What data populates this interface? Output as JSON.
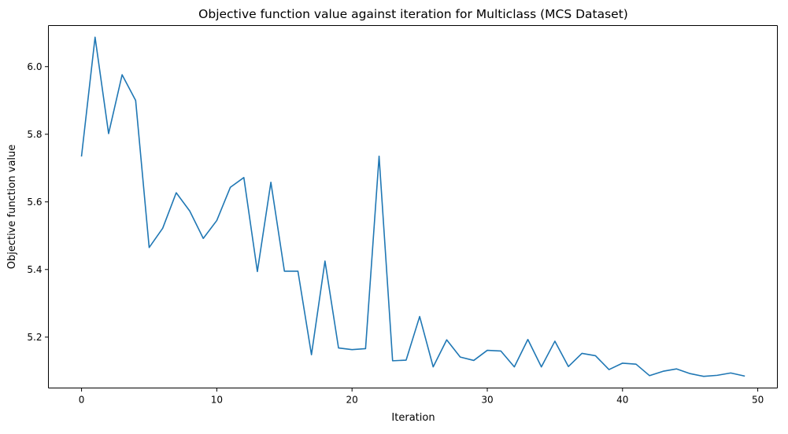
{
  "chart_data": {
    "type": "line",
    "title": "Objective function value against iteration for Multiclass (MCS Dataset)",
    "xlabel": "Iteration",
    "ylabel": "Objective function value",
    "xlim": [
      -2.45,
      51.45
    ],
    "ylim": [
      5.0495,
      6.1215
    ],
    "xticks": [
      0,
      10,
      20,
      30,
      40,
      50
    ],
    "yticks": [
      5.2,
      5.4,
      5.6,
      5.8,
      6.0
    ],
    "xtick_labels": [
      "0",
      "10",
      "20",
      "30",
      "40",
      "50"
    ],
    "ytick_labels": [
      "5.2",
      "5.4",
      "5.6",
      "5.8",
      "6.0"
    ],
    "grid": false,
    "legend": null,
    "series": [
      {
        "color": "#1f77b4",
        "x": [
          0,
          1,
          2,
          3,
          4,
          5,
          6,
          7,
          8,
          9,
          10,
          11,
          12,
          13,
          14,
          15,
          16,
          17,
          18,
          19,
          20,
          21,
          22,
          23,
          24,
          25,
          26,
          27,
          28,
          29,
          30,
          31,
          32,
          33,
          34,
          35,
          36,
          37,
          38,
          39,
          40,
          41,
          42,
          43,
          44,
          45,
          46,
          47,
          48,
          49
        ],
        "y": [
          5.736,
          6.087,
          5.802,
          5.976,
          5.9,
          5.465,
          5.522,
          5.627,
          5.573,
          5.492,
          5.545,
          5.643,
          5.672,
          5.394,
          5.658,
          5.395,
          5.395,
          5.148,
          5.425,
          5.168,
          5.163,
          5.166,
          5.735,
          5.13,
          5.132,
          5.261,
          5.112,
          5.192,
          5.141,
          5.131,
          5.161,
          5.159,
          5.112,
          5.193,
          5.112,
          5.188,
          5.113,
          5.152,
          5.145,
          5.104,
          5.123,
          5.12,
          5.086,
          5.099,
          5.106,
          5.092,
          5.084,
          5.087,
          5.094,
          5.085
        ]
      }
    ]
  }
}
